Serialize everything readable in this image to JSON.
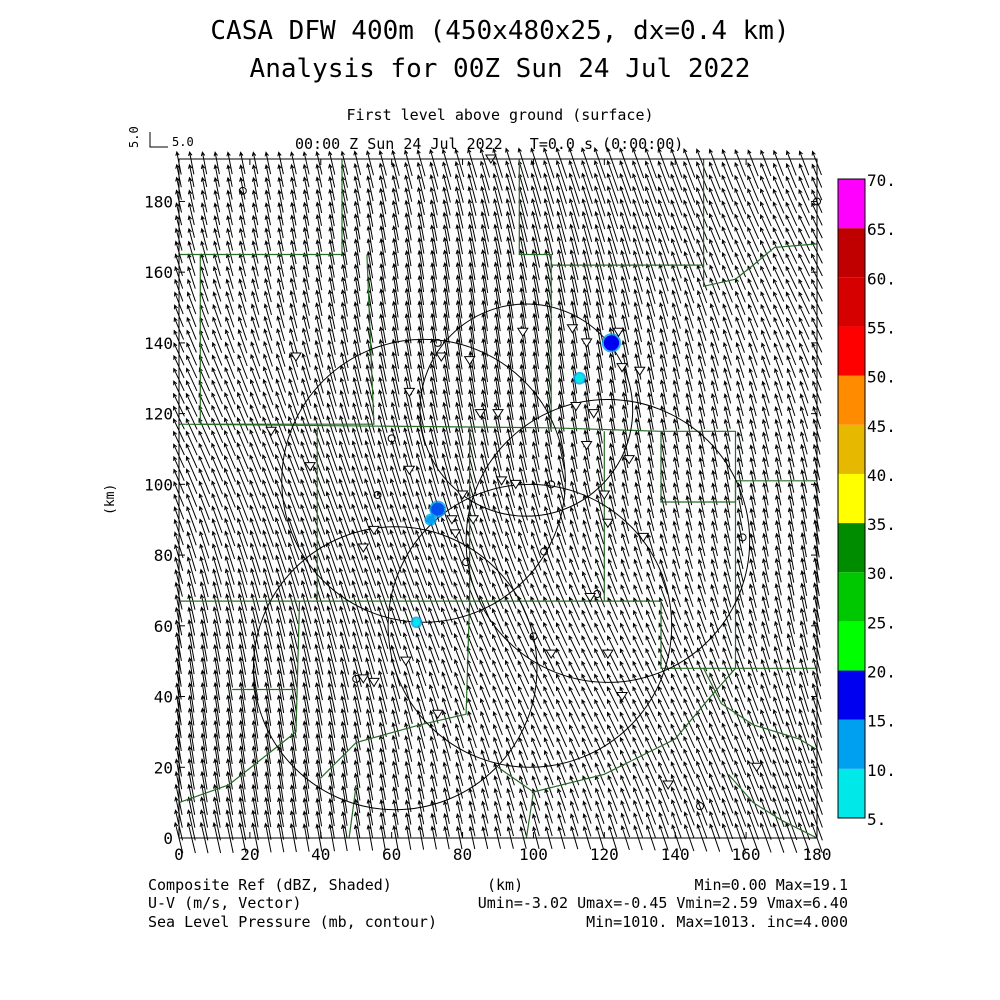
{
  "header": {
    "title_line1": "CASA DFW 400m (450x480x25, dx=0.4 km)",
    "title_line2": "Analysis for 00Z Sun 24 Jul 2022",
    "level": "First level above ground (surface)",
    "valid_time": "00:00 Z Sun 24 Jul 2022   T=0.0 s (0:00:00)",
    "vector_ref": "5.0"
  },
  "axes": {
    "x_ticks": [
      "0",
      "20",
      "40",
      "60",
      "80",
      "100",
      "120",
      "140",
      "160",
      "180"
    ],
    "y_ticks": [
      "0",
      "20",
      "40",
      "60",
      "80",
      "100",
      "120",
      "140",
      "160",
      "180"
    ],
    "x_range_km": [
      0,
      180
    ],
    "y_range_km": [
      0,
      192
    ],
    "x_label": "(km)",
    "y_label": "(km)"
  },
  "colorbar": {
    "labels": [
      "5.",
      "10.",
      "15.",
      "20.",
      "25.",
      "30.",
      "35.",
      "40.",
      "45.",
      "50.",
      "55.",
      "60.",
      "65.",
      "70."
    ],
    "colors": [
      "#00e8e8",
      "#00a0f0",
      "#0000f0",
      "#00ff00",
      "#00c800",
      "#008c00",
      "#ffff00",
      "#e6b800",
      "#ff8c00",
      "#ff0000",
      "#d60000",
      "#c00000",
      "#ff00ff"
    ]
  },
  "footer": {
    "field1_name": "Composite Ref (dBZ, Shaded)",
    "field1_stats": "Min=0.00 Max=19.1",
    "field2_name": "U-V (m/s, Vector)",
    "field2_stats": "Umin=-3.02 Umax=-0.45 Vmin=2.59 Vmax=6.40",
    "field3_name": "Sea Level Pressure (mb, contour)",
    "field3_stats": "Min=1010. Max=1013. inc=4.000"
  },
  "map": {
    "wind_vector_mean": {
      "u": -1.4,
      "v": 4.8
    },
    "vector_grid_spacing_km": 3.6,
    "radar_range_rings": [
      {
        "x": 98,
        "y": 121,
        "r": 30
      },
      {
        "x": 69,
        "y": 101,
        "r": 40
      },
      {
        "x": 99,
        "y": 60,
        "r": 40
      },
      {
        "x": 61,
        "y": 48,
        "r": 40
      },
      {
        "x": 121,
        "y": 84,
        "r": 40
      }
    ],
    "reflectivity_cells": [
      {
        "x": 122,
        "y": 140,
        "dbz": 19,
        "color": "#0000f0"
      },
      {
        "x": 113,
        "y": 130,
        "dbz": 8,
        "color": "#00e8e8"
      },
      {
        "x": 73,
        "y": 93,
        "dbz": 15,
        "color": "#0050f0"
      },
      {
        "x": 71,
        "y": 90,
        "dbz": 7,
        "color": "#00a0f0"
      },
      {
        "x": 67,
        "y": 61,
        "dbz": 6,
        "color": "#00e8e8"
      }
    ],
    "station_circles": [
      [
        18,
        183
      ],
      [
        73,
        140
      ],
      [
        60,
        113
      ],
      [
        56,
        97
      ],
      [
        105,
        100
      ],
      [
        81,
        78
      ],
      [
        103,
        81
      ],
      [
        118,
        69
      ],
      [
        100,
        57
      ],
      [
        159,
        85
      ],
      [
        50,
        45
      ],
      [
        147,
        9
      ],
      [
        180,
        180
      ]
    ],
    "station_triangles": [
      [
        88,
        192
      ],
      [
        33,
        136
      ],
      [
        97,
        143
      ],
      [
        111,
        144
      ],
      [
        115,
        140
      ],
      [
        124,
        143
      ],
      [
        125,
        133
      ],
      [
        130,
        132
      ],
      [
        74,
        136
      ],
      [
        82,
        135
      ],
      [
        65,
        126
      ],
      [
        112,
        122
      ],
      [
        117,
        120
      ],
      [
        85,
        120
      ],
      [
        90,
        120
      ],
      [
        26,
        115
      ],
      [
        115,
        111
      ],
      [
        127,
        107
      ],
      [
        37,
        105
      ],
      [
        65,
        104
      ],
      [
        80,
        97
      ],
      [
        95,
        100
      ],
      [
        91,
        101
      ],
      [
        120,
        97
      ],
      [
        121,
        89
      ],
      [
        131,
        85
      ],
      [
        78,
        86
      ],
      [
        83,
        90
      ],
      [
        77,
        90
      ],
      [
        55,
        87
      ],
      [
        52,
        82
      ],
      [
        64,
        50
      ],
      [
        52,
        45
      ],
      [
        55,
        44
      ],
      [
        105,
        52
      ],
      [
        121,
        52
      ],
      [
        116,
        68
      ],
      [
        125,
        40
      ],
      [
        73,
        35
      ],
      [
        138,
        15
      ],
      [
        163,
        20
      ]
    ]
  }
}
